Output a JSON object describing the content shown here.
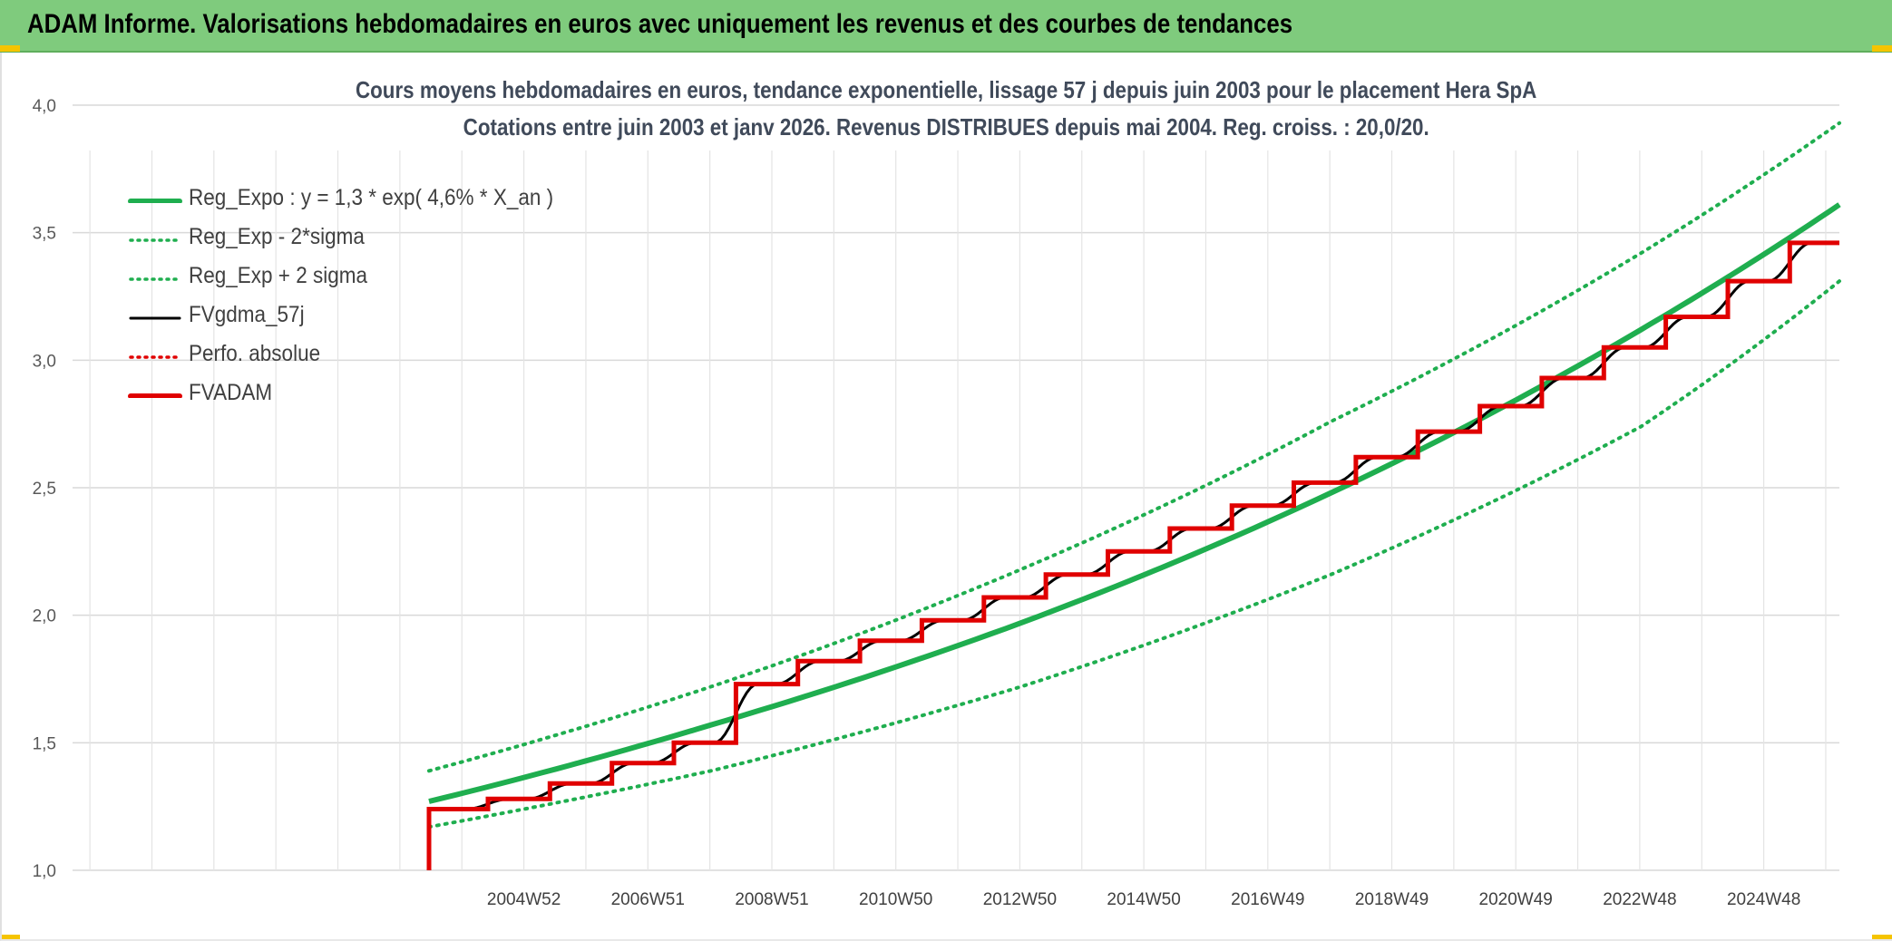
{
  "header": {
    "title": "ADAM Informe. Valorisations hebdomadaires en euros avec uniquement les revenus et des courbes de tendances"
  },
  "chart_title": {
    "line1": "Cours moyens hebdomadaires en euros, tendance exponentielle, lissage 57 j depuis juin 2003 pour le placement Hera SpA",
    "line2": "Cotations entre juin 2003 et janv 2026. Revenus DISTRIBUES depuis mai 2004.  Reg. croiss. : 20,0/20."
  },
  "legend": [
    {
      "label": "Reg_Expo : y = 1,3 * exp( 4,6% *  X_an )",
      "color": "#1fae4f",
      "style": "solid-thick"
    },
    {
      "label": "Reg_Exp - 2*sigma",
      "color": "#1fae4f",
      "style": "dotted"
    },
    {
      "label": "Reg_Exp + 2 sigma",
      "color": "#1fae4f",
      "style": "dotted"
    },
    {
      "label": "FVgdma_57j",
      "color": "#000000",
      "style": "solid"
    },
    {
      "label": "Perfo. absolue",
      "color": "#e00000",
      "style": "dotted"
    },
    {
      "label": "FVADAM",
      "color": "#e00000",
      "style": "solid-thick"
    }
  ],
  "chart_data": {
    "type": "line",
    "ylim": [
      1.0,
      4.0
    ],
    "y_ticks": [
      "1,0",
      "1,5",
      "2,0",
      "2,5",
      "3,0",
      "3,5",
      "4,0"
    ],
    "x_range": [
      1997.7,
      2026.2
    ],
    "x_tick_labels": [
      {
        "label": "2004W52",
        "year": 2004.98
      },
      {
        "label": "2006W51",
        "year": 2006.98
      },
      {
        "label": "2008W51",
        "year": 2008.98
      },
      {
        "label": "2010W50",
        "year": 2010.98
      },
      {
        "label": "2012W50",
        "year": 2012.98
      },
      {
        "label": "2014W50",
        "year": 2014.98
      },
      {
        "label": "2016W49",
        "year": 2016.98
      },
      {
        "label": "2018W49",
        "year": 2018.98
      },
      {
        "label": "2020W49",
        "year": 2020.98
      },
      {
        "label": "2022W48",
        "year": 2022.98
      },
      {
        "label": "2024W48",
        "year": 2024.98
      }
    ],
    "grid": true,
    "series": [
      {
        "name": "Reg_Expo : y = 1,3 * exp( 4,6% *  X_an )",
        "color": "#1fae4f",
        "x": [
          2003.45,
          2008.0,
          2013.0,
          2018.0,
          2023.0,
          2026.2
        ],
        "y": [
          1.27,
          1.57,
          1.97,
          2.48,
          3.12,
          3.61
        ]
      },
      {
        "name": "Reg_Exp - 2*sigma",
        "color": "#1fae4f",
        "x": [
          2003.45,
          2008.0,
          2013.0,
          2018.0,
          2023.0,
          2026.2
        ],
        "y": [
          1.17,
          1.39,
          1.72,
          2.16,
          2.74,
          3.31
        ]
      },
      {
        "name": "Reg_Exp + 2 sigma",
        "color": "#1fae4f",
        "x": [
          2003.45,
          2008.0,
          2013.0,
          2018.0,
          2023.0,
          2026.2
        ],
        "y": [
          1.39,
          1.72,
          2.18,
          2.76,
          3.42,
          3.93
        ]
      },
      {
        "name": "FVADAM",
        "color": "#e00000",
        "step_years": [
          2003.45,
          2004.4,
          2005.4,
          2006.4,
          2007.4,
          2008.4,
          2009.4,
          2010.4,
          2011.4,
          2012.4,
          2013.4,
          2014.4,
          2015.4,
          2016.4,
          2017.4,
          2018.4,
          2019.4,
          2020.4,
          2021.4,
          2022.4,
          2023.4,
          2024.4,
          2025.4,
          2026.2
        ],
        "step_values": [
          1.24,
          1.28,
          1.34,
          1.42,
          1.5,
          1.73,
          1.82,
          1.9,
          1.98,
          2.07,
          2.16,
          2.25,
          2.34,
          2.43,
          2.52,
          2.62,
          2.72,
          2.82,
          2.93,
          3.05,
          3.17,
          3.31,
          3.46
        ],
        "start_value": 1.0
      }
    ]
  }
}
